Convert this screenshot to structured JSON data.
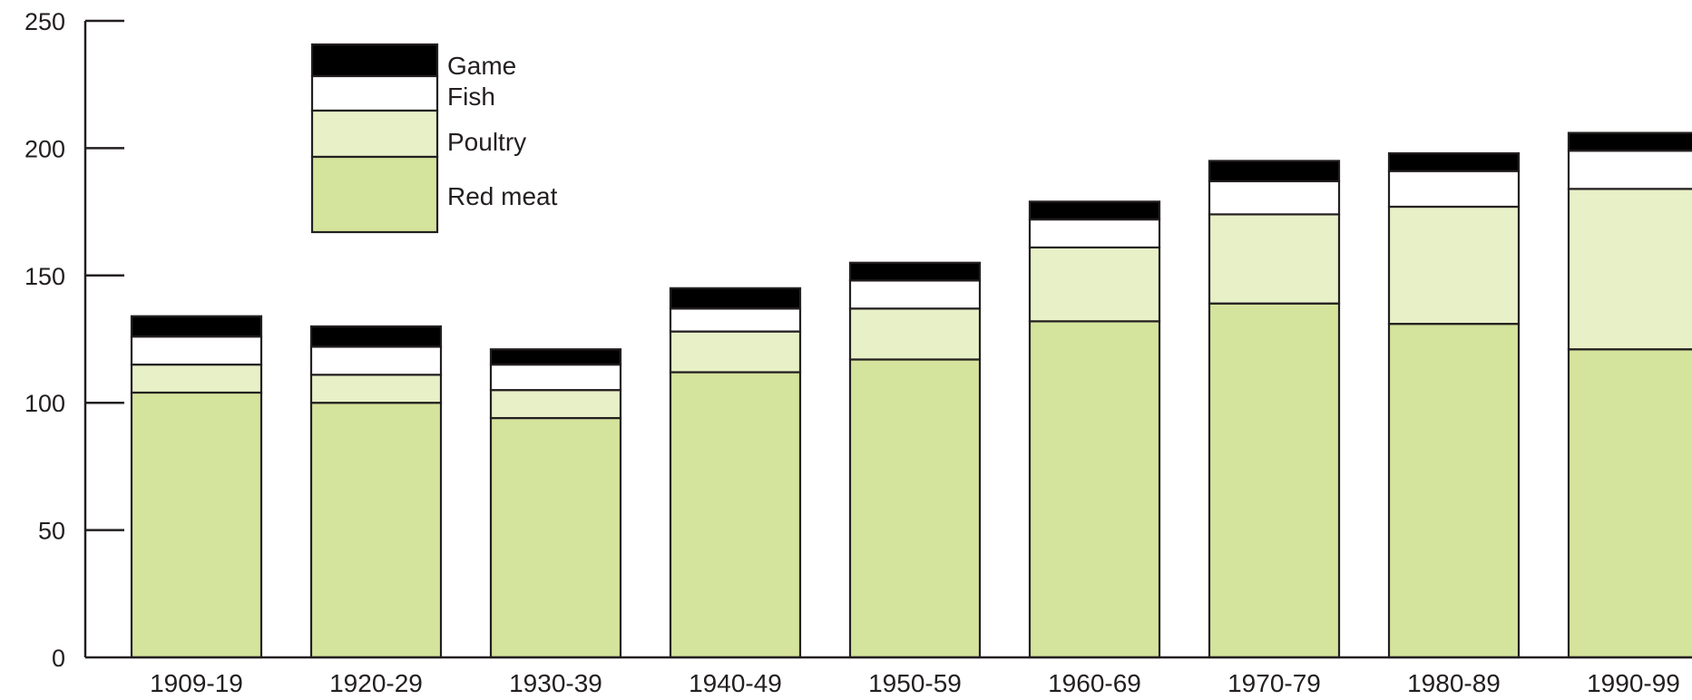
{
  "chart_data": {
    "type": "bar",
    "stacked": true,
    "title": "",
    "xlabel": "",
    "ylabel": "",
    "ylim": [
      0,
      250
    ],
    "yticks": [
      "0",
      "50",
      "100",
      "150",
      "200",
      "250"
    ],
    "grid": false,
    "legend_position": "top-left",
    "categories": [
      "1909-19",
      "1920-29",
      "1930-39",
      "1940-49",
      "1950-59",
      "1960-69",
      "1970-79",
      "1980-89",
      "1990-99"
    ],
    "series": [
      {
        "name": "Red meat",
        "color": "#d5e49c",
        "values": [
          104,
          100,
          94,
          112,
          117,
          132,
          139,
          131,
          121
        ]
      },
      {
        "name": "Poultry",
        "color": "#e8f0c7",
        "values": [
          11,
          11,
          11,
          16,
          20,
          29,
          35,
          46,
          63
        ]
      },
      {
        "name": "Fish",
        "color": "#ffffff",
        "values": [
          11,
          11,
          10,
          9,
          11,
          11,
          13,
          14,
          15
        ]
      },
      {
        "name": "Game",
        "color": "#000000",
        "values": [
          8,
          8,
          6,
          8,
          7,
          7,
          8,
          7,
          7
        ]
      }
    ],
    "legend_order": [
      "Game",
      "Fish",
      "Poultry",
      "Red meat"
    ],
    "colors": {
      "axis": "#231f20",
      "bar_edge": "#231f20"
    }
  }
}
